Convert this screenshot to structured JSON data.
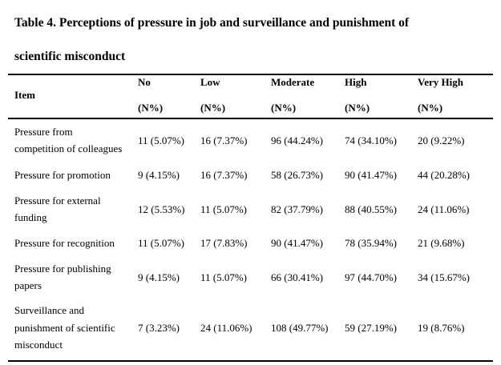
{
  "title": {
    "line1": "Table 4. Perceptions of pressure in job and surveillance and punishment of",
    "line2": "scientific misconduct"
  },
  "table": {
    "columns": [
      {
        "label": "Item",
        "sub": ""
      },
      {
        "label": "No",
        "sub": "(N%)"
      },
      {
        "label": "Low",
        "sub": "(N%)"
      },
      {
        "label": "Moderate",
        "sub": "(N%)"
      },
      {
        "label": "High",
        "sub": "(N%)"
      },
      {
        "label": "Very High",
        "sub": "(N%)"
      }
    ],
    "rows": [
      {
        "item": [
          "Pressure from",
          "competition of colleagues"
        ],
        "values": [
          "11 (5.07%)",
          "16 (7.37%)",
          "96 (44.24%)",
          "74 (34.10%)",
          "20 (9.22%)"
        ]
      },
      {
        "item": [
          "Pressure for promotion"
        ],
        "values": [
          "9 (4.15%)",
          "16 (7.37%)",
          "58 (26.73%)",
          "90 (41.47%)",
          "44 (20.28%)"
        ]
      },
      {
        "item": [
          "Pressure for external",
          "funding"
        ],
        "values": [
          "12 (5.53%)",
          "11 (5.07%)",
          "82 (37.79%)",
          "88 (40.55%)",
          "24 (11.06%)"
        ]
      },
      {
        "item": [
          "Pressure for recognition"
        ],
        "values": [
          "11 (5.07%)",
          "17 (7.83%)",
          "90 (41.47%)",
          "78 (35.94%)",
          "21 (9.68%)"
        ]
      },
      {
        "item": [
          "Pressure for publishing",
          "papers"
        ],
        "values": [
          "9 (4.15%)",
          "11 (5.07%)",
          "66 (30.41%)",
          "97 (44.70%)",
          "34 (15.67%)"
        ]
      },
      {
        "item": [
          "Surveillance and",
          "punishment of scientific",
          "misconduct"
        ],
        "values": [
          "7 (3.23%)",
          "24 (11.06%)",
          "108 (49.77%)",
          "59 (27.19%)",
          "19 (8.76%)"
        ]
      }
    ]
  }
}
